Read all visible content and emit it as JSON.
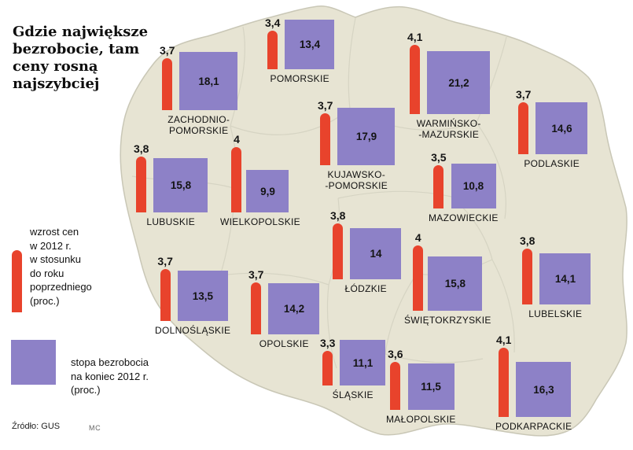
{
  "title": "Gdzie największe\nbezrobocie, tam\nceny rosną\nnajszybciej",
  "legend": {
    "price": "wzrost cen\nw 2012 r.\nw stosunku\ndo roku\npoprzedniego\n(proc.)",
    "unemployment": "stopa bezrobocia\nna koniec 2012 r.\n(proc.)"
  },
  "source": "Źródło: GUS",
  "credit": "MC",
  "colors": {
    "bar": "#e8432c",
    "square": "#8d81c7",
    "map": "#e7e4d3",
    "map_border": "#c9c7b6",
    "map_inner": "#d6d4c3"
  },
  "regions": [
    {
      "name": "ZACHODNIO-\nPOMORSKIE",
      "price": "3,7",
      "unemployment": "18,1",
      "price_value": 3.7,
      "unemployment_value": 18.1
    },
    {
      "name": "POMORSKIE",
      "price": "3,4",
      "unemployment": "13,4",
      "price_value": 3.4,
      "unemployment_value": 13.4
    },
    {
      "name": "WARMIŃSKO-\n-MAZURSKIE",
      "price": "4,1",
      "unemployment": "21,2",
      "price_value": 4.1,
      "unemployment_value": 21.2
    },
    {
      "name": "PODLASKIE",
      "price": "3,7",
      "unemployment": "14,6",
      "price_value": 3.7,
      "unemployment_value": 14.6
    },
    {
      "name": "KUJAWSKO-\n-POMORSKIE",
      "price": "3,7",
      "unemployment": "17,9",
      "price_value": 3.7,
      "unemployment_value": 17.9
    },
    {
      "name": "LUBUSKIE",
      "price": "3,8",
      "unemployment": "15,8",
      "price_value": 3.8,
      "unemployment_value": 15.8
    },
    {
      "name": "WIELKOPOLSKIE",
      "price": "4",
      "unemployment": "9,9",
      "price_value": 4.0,
      "unemployment_value": 9.9
    },
    {
      "name": "MAZOWIECKIE",
      "price": "3,5",
      "unemployment": "10,8",
      "price_value": 3.5,
      "unemployment_value": 10.8
    },
    {
      "name": "ŁÓDZKIE",
      "price": "3,8",
      "unemployment": "14",
      "price_value": 3.8,
      "unemployment_value": 14.0
    },
    {
      "name": "ŚWIĘTOKRZYSKIE",
      "price": "4",
      "unemployment": "15,8",
      "price_value": 4.0,
      "unemployment_value": 15.8
    },
    {
      "name": "LUBELSKIE",
      "price": "3,8",
      "unemployment": "14,1",
      "price_value": 3.8,
      "unemployment_value": 14.1
    },
    {
      "name": "DOLNOŚLĄSKIE",
      "price": "3,7",
      "unemployment": "13,5",
      "price_value": 3.7,
      "unemployment_value": 13.5
    },
    {
      "name": "OPOLSKIE",
      "price": "3,7",
      "unemployment": "14,2",
      "price_value": 3.7,
      "unemployment_value": 14.2
    },
    {
      "name": "ŚLĄSKIE",
      "price": "3,3",
      "unemployment": "11,1",
      "price_value": 3.3,
      "unemployment_value": 11.1
    },
    {
      "name": "MAŁOPOLSKIE",
      "price": "3,6",
      "unemployment": "11,5",
      "price_value": 3.6,
      "unemployment_value": 11.5
    },
    {
      "name": "PODKARPACKIE",
      "price": "4,1",
      "unemployment": "16,3",
      "price_value": 4.1,
      "unemployment_value": 16.3
    }
  ],
  "chart_data": {
    "type": "bar",
    "title": "Gdzie największe bezrobocie, tam ceny rosną najszybciej",
    "subtitle": "Dane na mapie Polski według województw",
    "categories": [
      "ZACHODNIOPOMORSKIE",
      "POMORSKIE",
      "WARMIŃSKO-MAZURSKIE",
      "PODLASKIE",
      "KUJAWSKO-POMORSKIE",
      "LUBUSKIE",
      "WIELKOPOLSKIE",
      "MAZOWIECKIE",
      "ŁÓDZKIE",
      "ŚWIĘTOKRZYSKIE",
      "LUBELSKIE",
      "DOLNOŚLĄSKIE",
      "OPOLSKIE",
      "ŚLĄSKIE",
      "MAŁOPOLSKIE",
      "PODKARPACKIE"
    ],
    "series": [
      {
        "name": "wzrost cen w 2012 r. w stosunku do roku poprzedniego (proc.)",
        "values": [
          3.7,
          3.4,
          4.1,
          3.7,
          3.7,
          3.8,
          4.0,
          3.5,
          3.8,
          4.0,
          3.8,
          3.7,
          3.7,
          3.3,
          3.6,
          4.1
        ],
        "mark": "red bar, height ~ value"
      },
      {
        "name": "stopa bezrobocia na koniec 2012 r. (proc.)",
        "values": [
          18.1,
          13.4,
          21.2,
          14.6,
          17.9,
          15.8,
          9.9,
          10.8,
          14.0,
          15.8,
          14.1,
          13.5,
          14.2,
          11.1,
          11.5,
          16.3
        ],
        "mark": "purple square, area ~ value"
      }
    ],
    "legend_position": "left",
    "source": "Źródło: GUS"
  }
}
